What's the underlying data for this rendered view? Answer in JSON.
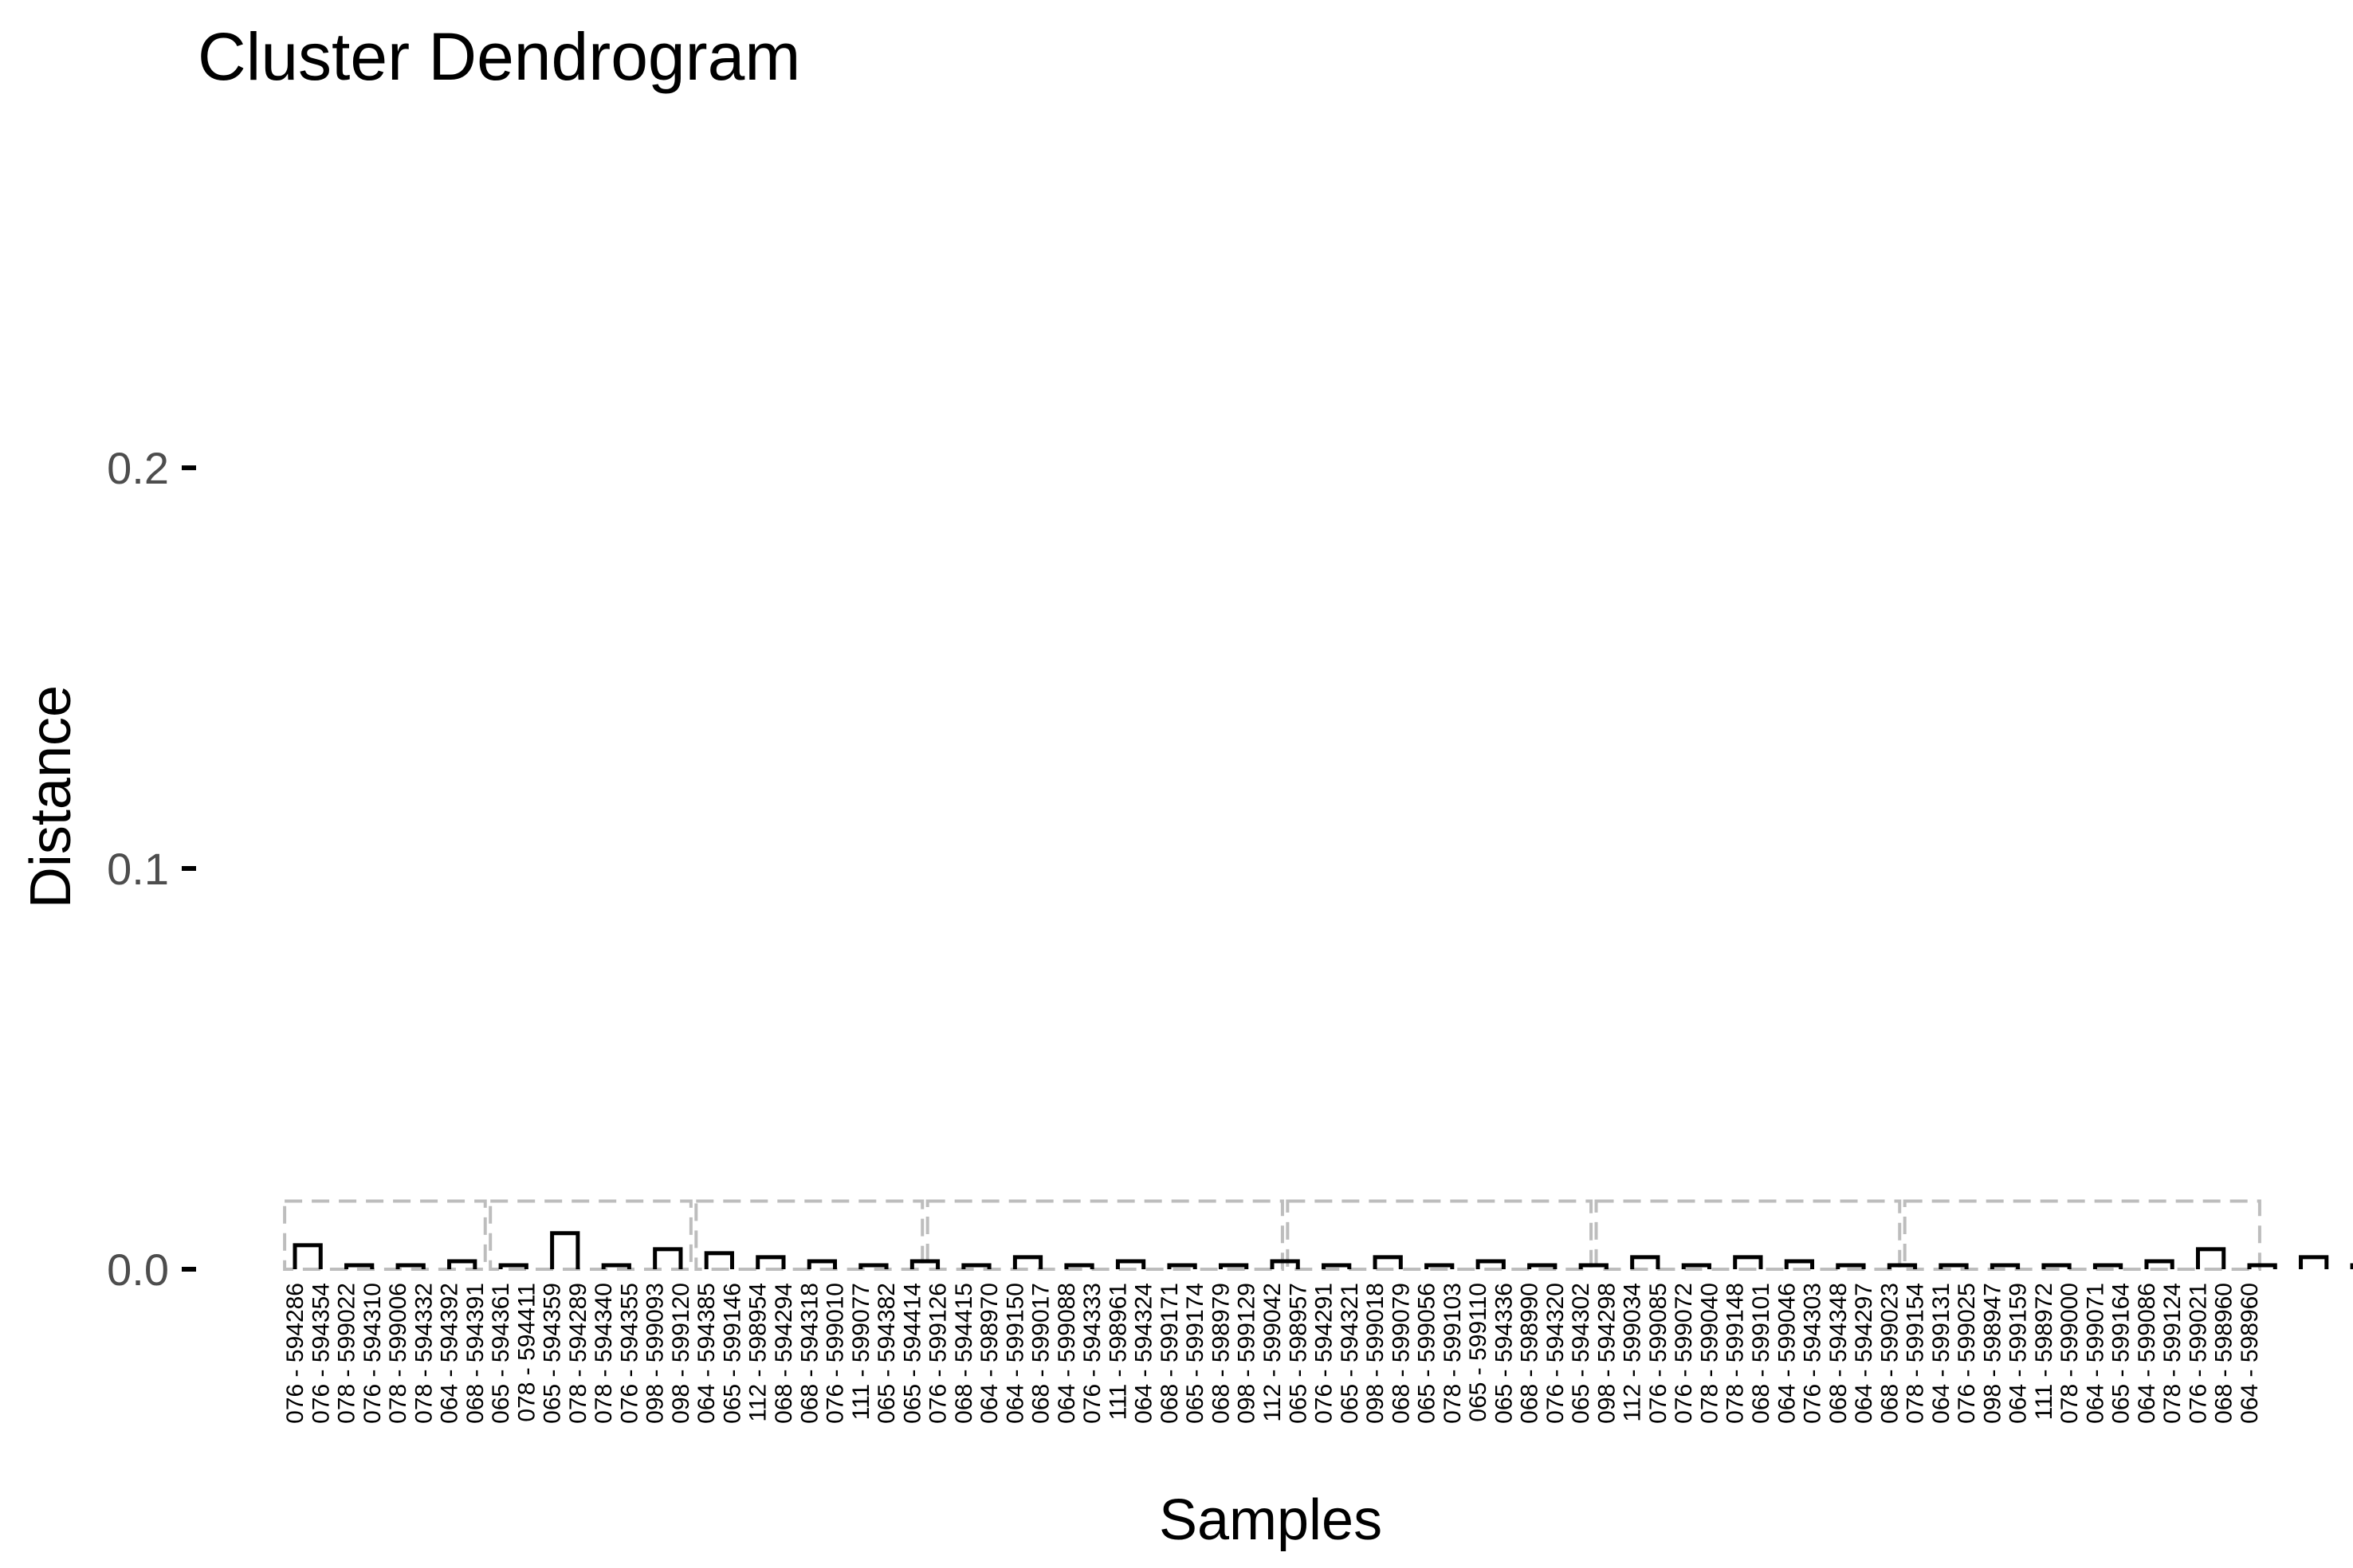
{
  "chart_data": {
    "type": "dendrogram",
    "title": "Cluster Dendrogram",
    "xlabel": "Samples",
    "ylabel": "Distance",
    "ylim": [
      0,
      0.27
    ],
    "yticks": [
      {
        "value": 0.0,
        "label": "0.0"
      },
      {
        "value": 0.1,
        "label": "0.1"
      },
      {
        "value": 0.2,
        "label": "0.2"
      }
    ],
    "grid": false,
    "rect_height": 0.017,
    "colors": {
      "branch": "#000000",
      "rect": "#bdbdbd"
    },
    "leaves": [
      "076 - 594286",
      "076 - 594354",
      "078 - 599022",
      "076 - 594310",
      "078 - 599006",
      "078 - 594332",
      "064 - 594392",
      "068 - 594391",
      "065 - 594361",
      "078 - 594411",
      "065 - 594359",
      "078 - 594289",
      "078 - 594340",
      "076 - 594355",
      "098 - 599093",
      "098 - 599120",
      "064 - 594385",
      "065 - 599146",
      "112 - 598954",
      "068 - 594294",
      "068 - 594318",
      "076 - 599010",
      "111 - 599077",
      "065 - 594382",
      "065 - 594414",
      "076 - 599126",
      "068 - 594415",
      "064 - 598970",
      "064 - 599150",
      "068 - 599017",
      "064 - 599088",
      "076 - 594333",
      "111 - 598961",
      "064 - 594324",
      "068 - 599171",
      "065 - 599174",
      "068 - 598979",
      "098 - 599129",
      "112 - 599042",
      "065 - 598957",
      "076 - 594291",
      "065 - 594321",
      "098 - 599018",
      "068 - 599079",
      "065 - 599056",
      "078 - 599103",
      "065 - 599110",
      "065 - 594336",
      "068 - 598990",
      "076 - 594320",
      "065 - 594302",
      "098 - 594298",
      "112 - 599034",
      "076 - 599085",
      "076 - 599072",
      "078 - 599040",
      "078 - 599148",
      "068 - 599101",
      "064 - 599046",
      "076 - 594303",
      "068 - 594348",
      "064 - 594297",
      "068 - 599023",
      "078 - 599154",
      "064 - 599131",
      "076 - 599025",
      "098 - 598947",
      "064 - 599159",
      "111 - 598972",
      "078 - 599000",
      "064 - 599071",
      "065 - 599164",
      "064 - 599086",
      "078 - 599124",
      "076 - 599021",
      "068 - 598960",
      "064 - 598960"
    ],
    "merges": [
      {
        "l": 0,
        "r": 1,
        "h": 0.006
      },
      {
        "l": 2,
        "r": 3,
        "h": 0.001
      },
      {
        "l": 4,
        "r": 5,
        "h": 0.001
      },
      {
        "l": 6,
        "r": 7,
        "h": 0.002
      },
      {
        "l": 8,
        "r": 9,
        "h": 0.001
      },
      {
        "l": 10,
        "r": 11,
        "h": 0.009
      },
      {
        "l": 12,
        "r": 13,
        "h": 0.001
      },
      {
        "l": 14,
        "r": 15,
        "h": 0.005
      },
      {
        "l": 16,
        "r": 17,
        "h": 0.004
      },
      {
        "l": 18,
        "r": 19,
        "h": 0.003
      },
      {
        "l": 20,
        "r": 21,
        "h": 0.002
      },
      {
        "l": 22,
        "r": 23,
        "h": 0.001
      },
      {
        "l": 24,
        "r": 25,
        "h": 0.002
      },
      {
        "l": 26,
        "r": 27,
        "h": 0.001
      },
      {
        "l": 28,
        "r": 29,
        "h": 0.003
      },
      {
        "l": 30,
        "r": 31,
        "h": 0.001
      },
      {
        "l": 32,
        "r": 33,
        "h": 0.002
      },
      {
        "l": 34,
        "r": 35,
        "h": 0.001
      },
      {
        "l": 36,
        "r": 37,
        "h": 0.001
      },
      {
        "l": 38,
        "r": 39,
        "h": 0.002
      },
      {
        "l": 40,
        "r": 41,
        "h": 0.001
      },
      {
        "l": 42,
        "r": 43,
        "h": 0.003
      },
      {
        "l": 44,
        "r": 45,
        "h": 0.001
      },
      {
        "l": 46,
        "r": 47,
        "h": 0.002
      },
      {
        "l": 48,
        "r": 49,
        "h": 0.001
      },
      {
        "l": 50,
        "r": 51,
        "h": 0.001
      },
      {
        "l": 52,
        "r": 53,
        "h": 0.003
      },
      {
        "l": 54,
        "r": 55,
        "h": 0.001
      },
      {
        "l": 56,
        "r": 57,
        "h": 0.003
      },
      {
        "l": 58,
        "r": 59,
        "h": 0.002
      },
      {
        "l": 60,
        "r": 61,
        "h": 0.001
      },
      {
        "l": 62,
        "r": 63,
        "h": 0.001
      },
      {
        "l": 64,
        "r": 65,
        "h": 0.001
      },
      {
        "l": 66,
        "r": 67,
        "h": 0.001
      },
      {
        "l": 68,
        "r": 69,
        "h": 0.001
      },
      {
        "l": 70,
        "r": 71,
        "h": 0.001
      },
      {
        "l": 72,
        "r": 73,
        "h": 0.002
      },
      {
        "l": 74,
        "r": 75,
        "h": 0.005
      },
      {
        "l": 76,
        "r": 77,
        "h": 0.001
      },
      {
        "l": 78,
        "r": 79,
        "h": 0.003
      },
      {
        "l": 80,
        "r": 81,
        "h": 0.001
      },
      {
        "l": 82,
        "r": 83,
        "h": 0.001
      },
      {
        "l": 84,
        "r": 85,
        "h": 0.002
      },
      {
        "l": 86,
        "r": 87,
        "h": 0.001
      },
      {
        "l": 88,
        "r": 89,
        "h": 0.001
      },
      {
        "l": 90,
        "r": 91,
        "h": 0.001
      },
      {
        "l": 92,
        "r": 93,
        "h": 0.002
      },
      {
        "l": 94,
        "r": 95,
        "h": 0.002
      },
      {
        "l": 96,
        "r": 97,
        "h": 0.001
      }
    ]
  }
}
